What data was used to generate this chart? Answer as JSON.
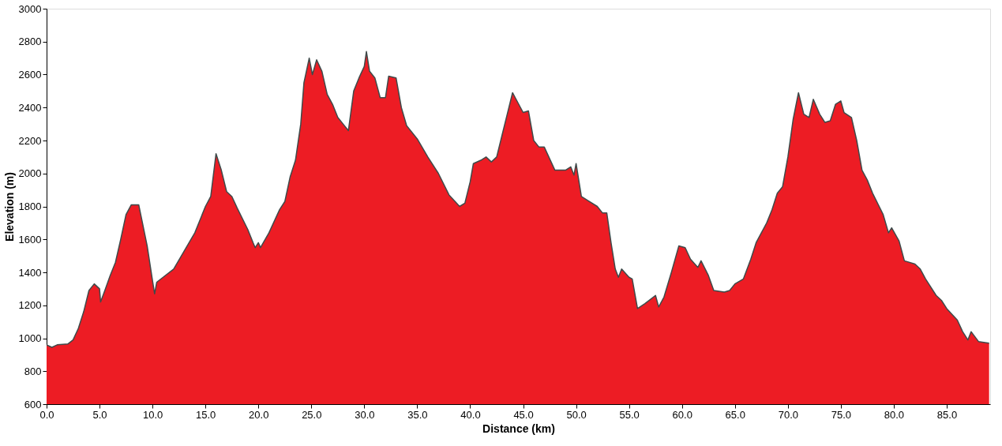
{
  "chart_data": {
    "type": "area",
    "xlabel": "Distance   (km)",
    "ylabel": "Elevation (m)",
    "xlim": [
      0,
      89.1
    ],
    "ylim": [
      600,
      3000
    ],
    "xticks": [
      {
        "value": 0,
        "label": "0.0"
      },
      {
        "value": 5,
        "label": "5.0"
      },
      {
        "value": 10,
        "label": "10.0"
      },
      {
        "value": 15,
        "label": "15.0"
      },
      {
        "value": 20,
        "label": "20.0"
      },
      {
        "value": 25,
        "label": "25.0"
      },
      {
        "value": 30,
        "label": "30.0"
      },
      {
        "value": 35,
        "label": "35.0"
      },
      {
        "value": 40,
        "label": "40.0"
      },
      {
        "value": 45,
        "label": "45.0"
      },
      {
        "value": 50,
        "label": "50.0"
      },
      {
        "value": 55,
        "label": "55.0"
      },
      {
        "value": 60,
        "label": "60.0"
      },
      {
        "value": 65,
        "label": "65.0"
      },
      {
        "value": 70,
        "label": "70.0"
      },
      {
        "value": 75,
        "label": "75.0"
      },
      {
        "value": 80,
        "label": "80.0"
      },
      {
        "value": 85,
        "label": "85.0"
      }
    ],
    "yticks": [
      600,
      800,
      1000,
      1200,
      1400,
      1600,
      1800,
      2000,
      2200,
      2400,
      2600,
      2800,
      3000
    ],
    "grid": false,
    "series": [
      {
        "color": "#ed1c24",
        "x": [
          0,
          0.5,
          1,
          2,
          2.5,
          3,
          3.5,
          4,
          4.5,
          5,
          5.1,
          5.5,
          6,
          6.5,
          7,
          7.5,
          8,
          8.7,
          9.5,
          10,
          10.2,
          10.4,
          11,
          12,
          13,
          14,
          15,
          15.5,
          16,
          16.5,
          17,
          17.5,
          18,
          19,
          19.5,
          19.7,
          20,
          20.2,
          21,
          22,
          22.5,
          23,
          23.5,
          24,
          24.3,
          24.8,
          25.1,
          25.5,
          26,
          26.5,
          27,
          27.5,
          28,
          28.5,
          29,
          29.5,
          30,
          30.2,
          30.5,
          31,
          31.5,
          32,
          32.3,
          33,
          33.5,
          34,
          35,
          36,
          37,
          38,
          39,
          39.5,
          40,
          40.3,
          41,
          41.5,
          42,
          42.5,
          43,
          43.5,
          44,
          44.5,
          45,
          45.5,
          46,
          46.5,
          47,
          48,
          49,
          49.5,
          49.8,
          50,
          50.5,
          51,
          52,
          52.5,
          52.9,
          53.3,
          53.7,
          54,
          54.3,
          55,
          55.3,
          55.8,
          56.5,
          57.5,
          57.8,
          58.3,
          59,
          59.7,
          60.3,
          60.8,
          61.5,
          61.8,
          62.5,
          63,
          64,
          64.5,
          65,
          65.8,
          66.5,
          67,
          68,
          68.5,
          69,
          69.5,
          70,
          70.5,
          71,
          71.5,
          72,
          72.4,
          73,
          73.5,
          74,
          74.5,
          75,
          75.3,
          76,
          76.5,
          77,
          77.5,
          78,
          79,
          79.5,
          79.8,
          80.5,
          81,
          82,
          82.5,
          83,
          84,
          84.5,
          85,
          86,
          86.5,
          87,
          87.3,
          88,
          89
        ],
        "values": [
          960,
          945,
          960,
          965,
          990,
          1060,
          1160,
          1290,
          1330,
          1300,
          1220,
          1290,
          1380,
          1460,
          1600,
          1750,
          1810,
          1810,
          1560,
          1350,
          1270,
          1340,
          1370,
          1420,
          1530,
          1640,
          1800,
          1860,
          2120,
          2020,
          1890,
          1860,
          1790,
          1660,
          1580,
          1550,
          1580,
          1550,
          1640,
          1780,
          1830,
          1980,
          2080,
          2300,
          2550,
          2700,
          2600,
          2690,
          2620,
          2480,
          2420,
          2340,
          2300,
          2260,
          2500,
          2580,
          2650,
          2740,
          2620,
          2580,
          2460,
          2460,
          2590,
          2580,
          2400,
          2290,
          2210,
          2100,
          2000,
          1870,
          1800,
          1820,
          1950,
          2060,
          2080,
          2100,
          2070,
          2100,
          2230,
          2360,
          2490,
          2430,
          2370,
          2380,
          2200,
          2160,
          2160,
          2020,
          2020,
          2040,
          1990,
          2060,
          1860,
          1840,
          1800,
          1760,
          1760,
          1580,
          1420,
          1370,
          1420,
          1370,
          1360,
          1180,
          1210,
          1260,
          1190,
          1250,
          1400,
          1560,
          1550,
          1480,
          1430,
          1470,
          1380,
          1290,
          1280,
          1290,
          1330,
          1360,
          1480,
          1580,
          1700,
          1780,
          1880,
          1920,
          2100,
          2330,
          2490,
          2360,
          2340,
          2450,
          2360,
          2310,
          2320,
          2420,
          2440,
          2370,
          2340,
          2200,
          2020,
          1960,
          1880,
          1750,
          1640,
          1670,
          1590,
          1470,
          1450,
          1420,
          1360,
          1260,
          1230,
          1180,
          1110,
          1040,
          990,
          1040,
          980,
          970
        ]
      }
    ]
  }
}
